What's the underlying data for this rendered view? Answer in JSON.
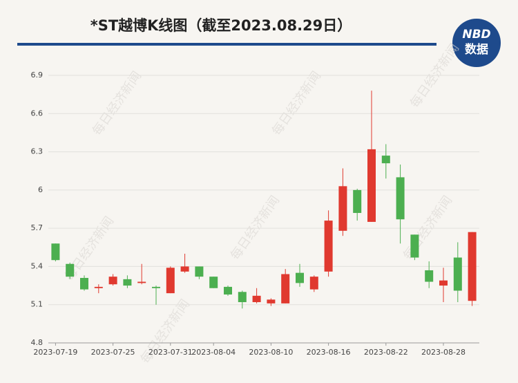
{
  "chart_data": {
    "type": "candlestick",
    "title": "*ST越博K线图（截至2023.08.29日）",
    "logo": {
      "top": "NBD",
      "bottom": "数据"
    },
    "watermark": "每日经济新闻",
    "categories": [
      "2023-07-19",
      null,
      null,
      null,
      "2023-07-25",
      null,
      null,
      null,
      "2023-07-31",
      null,
      null,
      "2023-08-04",
      null,
      null,
      null,
      "2023-08-10",
      null,
      null,
      null,
      "2023-08-16",
      null,
      null,
      null,
      "2023-08-22",
      null,
      null,
      null,
      "2023-08-28",
      null,
      null
    ],
    "series": [
      {
        "name": "open",
        "values": [
          5.58,
          5.42,
          5.31,
          5.23,
          5.26,
          5.3,
          5.27,
          5.24,
          5.19,
          5.36,
          5.4,
          5.32,
          5.24,
          5.2,
          5.12,
          5.11,
          5.11,
          5.35,
          5.22,
          5.36,
          5.68,
          6.0,
          5.75,
          6.27,
          6.1,
          5.65,
          5.37,
          5.25,
          5.47,
          5.13
        ]
      },
      {
        "name": "high",
        "values": [
          5.58,
          5.43,
          5.33,
          5.26,
          5.34,
          5.33,
          5.42,
          5.25,
          5.4,
          5.5,
          5.4,
          5.32,
          5.25,
          5.21,
          5.23,
          5.15,
          5.38,
          5.42,
          5.33,
          5.84,
          6.17,
          6.01,
          6.78,
          6.36,
          6.2,
          5.65,
          5.44,
          5.39,
          5.59,
          5.67
        ]
      },
      {
        "name": "low",
        "values": [
          5.44,
          5.3,
          5.21,
          5.19,
          5.25,
          5.23,
          5.26,
          5.1,
          5.19,
          5.35,
          5.3,
          5.23,
          5.17,
          5.07,
          5.11,
          5.09,
          5.11,
          5.24,
          5.2,
          5.32,
          5.64,
          5.76,
          5.75,
          6.09,
          5.58,
          5.45,
          5.23,
          5.12,
          5.12,
          5.09
        ]
      },
      {
        "name": "close",
        "values": [
          5.45,
          5.32,
          5.22,
          5.24,
          5.32,
          5.25,
          5.28,
          5.23,
          5.39,
          5.4,
          5.32,
          5.23,
          5.18,
          5.12,
          5.17,
          5.14,
          5.34,
          5.27,
          5.32,
          5.76,
          6.03,
          5.82,
          6.32,
          6.21,
          5.77,
          5.47,
          5.28,
          5.29,
          5.21,
          5.67
        ]
      }
    ],
    "up_color": "#e0392f",
    "down_color": "#4caf50",
    "ylim": [
      4.8,
      6.9
    ],
    "yticks": [
      4.8,
      5.1,
      5.4,
      5.7,
      6,
      6.3,
      6.6,
      6.9
    ],
    "grid": true
  }
}
